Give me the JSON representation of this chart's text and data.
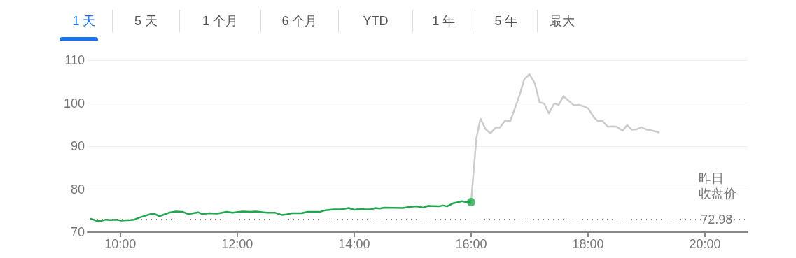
{
  "chart_data": {
    "type": "line",
    "annotations": [
      "1 天",
      "5 天",
      "1 个月",
      "6 个月",
      "YTD",
      "1 年",
      "5 年",
      "最大",
      {
        "text": "72.98",
        "x": 20.2,
        "y": 72.98
      }
    ],
    "xlim": [
      9.44,
      20.73
    ],
    "xticks": [
      {
        "value": 10,
        "label": "10:00"
      },
      {
        "value": 12,
        "label": "12:00"
      },
      {
        "value": 14,
        "label": "14:00"
      },
      {
        "value": 16,
        "label": "16:00"
      },
      {
        "value": 18,
        "label": "18:00"
      },
      {
        "value": 20,
        "label": "20:00"
      }
    ],
    "ylim": [
      70,
      110
    ],
    "yticks": [
      70,
      80,
      90,
      100,
      110
    ],
    "grid": "y",
    "marker": "none",
    "line_style": "solid",
    "ref_lines": [
      {
        "axis": "y",
        "value": 72.98,
        "label": "昨日收盘价",
        "color": "#555555",
        "line_style": "dotted"
      }
    ],
    "series": [
      {
        "color": "#22a650",
        "x": [
          9.5,
          9.6,
          9.67,
          9.75,
          9.83,
          9.93,
          10.01,
          10.17,
          10.24,
          10.33,
          10.52,
          10.59,
          10.67,
          10.83,
          10.95,
          11.07,
          11.16,
          11.33,
          11.4,
          11.52,
          11.66,
          11.82,
          11.92,
          12.09,
          12.23,
          12.32,
          12.51,
          12.65,
          12.76,
          12.84,
          12.94,
          13.1,
          13.2,
          13.41,
          13.51,
          13.65,
          13.77,
          13.91,
          14.0,
          14.1,
          14.19,
          14.29,
          14.36,
          14.43,
          14.52,
          14.83,
          14.97,
          15.07,
          15.18,
          15.26,
          15.45,
          15.52,
          15.59,
          15.69,
          15.76,
          15.84,
          15.92,
          16.0
        ],
        "values": [
          73.1,
          72.6,
          72.6,
          72.9,
          72.8,
          72.9,
          72.7,
          72.8,
          72.9,
          73.4,
          74.2,
          74.2,
          73.7,
          74.5,
          74.8,
          74.7,
          74.2,
          74.6,
          74.2,
          74.4,
          74.3,
          74.7,
          74.5,
          74.8,
          74.7,
          74.8,
          74.5,
          74.5,
          74.0,
          74.1,
          74.4,
          74.4,
          74.7,
          74.7,
          75.1,
          75.3,
          75.3,
          75.6,
          75.2,
          75.4,
          75.3,
          75.3,
          75.6,
          75.5,
          75.7,
          75.6,
          75.9,
          76.0,
          75.7,
          76.1,
          76.0,
          76.2,
          76.0,
          76.7,
          76.9,
          77.2,
          77.0,
          77.0
        ]
      },
      {
        "color": "#cccccc",
        "x": [
          16.0,
          16.09,
          16.16,
          16.25,
          16.33,
          16.42,
          16.49,
          16.58,
          16.67,
          16.83,
          16.91,
          17.0,
          17.09,
          17.17,
          17.25,
          17.33,
          17.42,
          17.5,
          17.58,
          17.68,
          17.76,
          17.84,
          17.92,
          18.0,
          18.1,
          18.17,
          18.25,
          18.34,
          18.42,
          18.49,
          18.59,
          18.67,
          18.75,
          18.83,
          18.91,
          19.01,
          19.07,
          19.21
        ],
        "values": [
          77.0,
          91.8,
          96.4,
          93.9,
          93.0,
          94.3,
          94.3,
          95.9,
          95.8,
          101.9,
          105.6,
          106.7,
          104.6,
          100.2,
          99.9,
          97.6,
          99.9,
          99.6,
          101.6,
          100.4,
          99.5,
          99.6,
          99.3,
          98.8,
          96.7,
          95.8,
          95.8,
          94.5,
          94.6,
          94.5,
          93.6,
          94.9,
          93.8,
          93.9,
          94.4,
          93.8,
          93.7,
          93.2
        ]
      },
      {
        "type": "scatter",
        "marker": "circle",
        "color": "#22a650",
        "x": [
          16.0
        ],
        "values": [
          77.0
        ]
      }
    ]
  }
}
